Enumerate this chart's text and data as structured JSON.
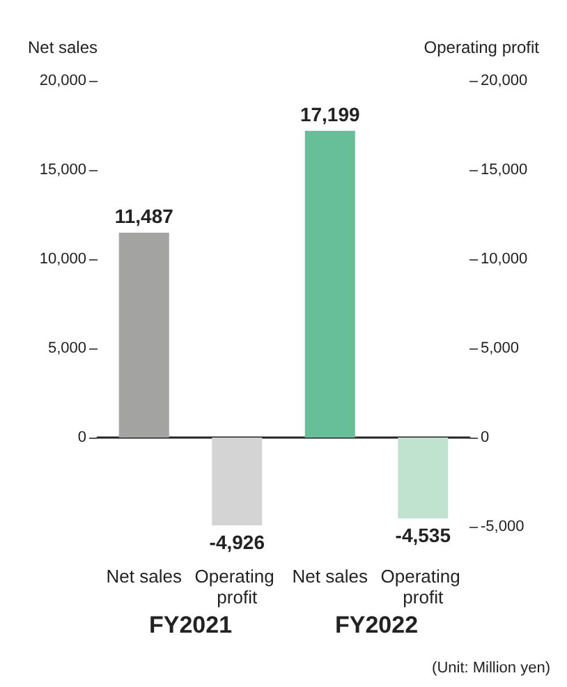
{
  "chart_data": {
    "type": "bar",
    "ylabel": "Net sales",
    "y2label": "Operating profit",
    "categories": [
      "Net sales",
      "Operating profit",
      "Net sales",
      "Operating profit"
    ],
    "series": [
      {
        "values": [
          11487,
          null,
          17199,
          null
        ],
        "value_labels": [
          "11,487",
          null,
          "17,199",
          null
        ],
        "colors": [
          "#a3a3a1",
          null,
          "#66bf98",
          null
        ]
      },
      {
        "values": [
          null,
          -4926,
          null,
          -4535
        ],
        "value_labels": [
          null,
          "-4,926",
          null,
          "-4,535"
        ],
        "colors": [
          null,
          "#d4d4d4",
          null,
          "#bfe3cf"
        ]
      }
    ],
    "ylim": [
      -5000,
      20000
    ],
    "yticks": [
      0,
      {
        "value": 5000,
        "label": "5,000"
      },
      {
        "value": 10000,
        "label": "10,000"
      },
      {
        "value": 15000,
        "label": "15,000"
      },
      {
        "value": 20000,
        "label": "20,000"
      }
    ],
    "y2lim": [
      -5000,
      20000
    ],
    "y2ticks": [
      {
        "value": -5000,
        "label": "-5,000"
      },
      0,
      {
        "value": 5000,
        "label": "5,000"
      },
      {
        "value": 10000,
        "label": "10,000"
      },
      {
        "value": 15000,
        "label": "15,000"
      },
      {
        "value": 20000,
        "label": "20,000"
      }
    ],
    "annotations": [
      "FY2021",
      "FY2022",
      "(Unit: Million yen)"
    ]
  }
}
